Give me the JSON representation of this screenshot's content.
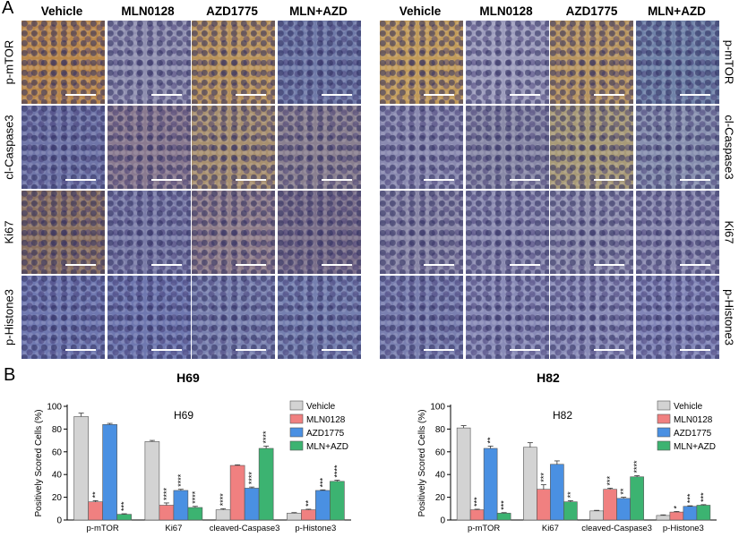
{
  "figure": {
    "panel_a_letter": "A",
    "panel_b_letter": "B",
    "column_headers": [
      "Vehicle",
      "MLN0128",
      "AZD1775",
      "MLN+AZD"
    ],
    "row_labels": [
      "p-mTOR",
      "cl-Caspase3",
      "Ki67",
      "p-Histone3"
    ],
    "cell_lines": [
      "H69",
      "H82"
    ]
  },
  "chart_data": [
    {
      "type": "bar",
      "title": "H69",
      "ylabel": "Positively Scored Cells (%)",
      "xlabel": "",
      "ylim": [
        0,
        100
      ],
      "yticks": [
        0,
        20,
        40,
        60,
        80,
        100
      ],
      "categories": [
        "p-mTOR",
        "Ki67",
        "cleaved-Caspase3",
        "p-Histone3"
      ],
      "series": [
        {
          "name": "Vehicle",
          "color": "#d3d3d3",
          "values": [
            91,
            69,
            9,
            6
          ],
          "errors": [
            3,
            1,
            1,
            0.5
          ]
        },
        {
          "name": "MLN0128",
          "color": "#f08080",
          "values": [
            16,
            13,
            48,
            9
          ],
          "errors": [
            1,
            2,
            0.5,
            0.5
          ]
        },
        {
          "name": "AZD1775",
          "color": "#4a90e2",
          "values": [
            84,
            26,
            28,
            26
          ],
          "errors": [
            1,
            1,
            1,
            0.5
          ]
        },
        {
          "name": "MLN+AZD",
          "color": "#3cb371",
          "values": [
            5,
            11,
            63,
            34
          ],
          "errors": [
            0.5,
            1,
            2,
            1
          ]
        }
      ],
      "significance": [
        [
          "",
          "",
          "****",
          ""
        ],
        [
          "**",
          "****",
          "",
          "**"
        ],
        [
          "",
          "****",
          "****",
          "***"
        ],
        [
          "***",
          "****",
          "****",
          "****"
        ]
      ],
      "legend_position": "right"
    },
    {
      "type": "bar",
      "title": "H82",
      "ylabel": "Positively Scored Cells (%)",
      "xlabel": "",
      "ylim": [
        0,
        100
      ],
      "yticks": [
        0,
        20,
        40,
        60,
        80,
        100
      ],
      "categories": [
        "p-mTOR",
        "Ki67",
        "cleaved-Caspase3",
        "p-Histone3"
      ],
      "series": [
        {
          "name": "Vehicle",
          "color": "#d3d3d3",
          "values": [
            81,
            64,
            8,
            4
          ],
          "errors": [
            2,
            4,
            0.5,
            0.5
          ]
        },
        {
          "name": "MLN0128",
          "color": "#f08080",
          "values": [
            9,
            27,
            27,
            7
          ],
          "errors": [
            0.5,
            4,
            1,
            0.5
          ]
        },
        {
          "name": "AZD1775",
          "color": "#4a90e2",
          "values": [
            63,
            49,
            19,
            12
          ],
          "errors": [
            2,
            3,
            1,
            0.5
          ]
        },
        {
          "name": "MLN+AZD",
          "color": "#3cb371",
          "values": [
            6,
            16,
            38,
            13
          ],
          "errors": [
            0.5,
            1,
            1,
            0.5
          ]
        }
      ],
      "significance": [
        [
          "",
          "",
          "",
          ""
        ],
        [
          "***",
          "***",
          "***",
          "*"
        ],
        [
          "**",
          "",
          "**",
          "***"
        ],
        [
          "***",
          "**",
          "****",
          "***"
        ]
      ],
      "legend_position": "right"
    }
  ]
}
